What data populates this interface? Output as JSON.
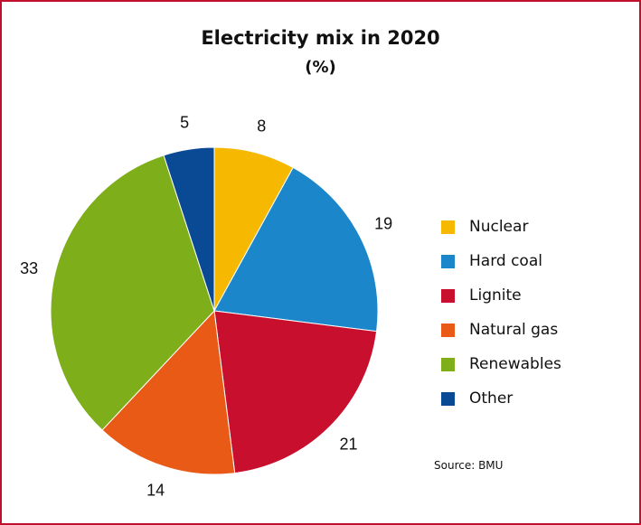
{
  "chart_data": {
    "type": "pie",
    "title": "Electricity mix in 2020",
    "subtitle": "(%)",
    "categories": [
      "Nuclear",
      "Hard coal",
      "Lignite",
      "Natural gas",
      "Renewables",
      "Other"
    ],
    "values": [
      8,
      19,
      21,
      14,
      33,
      5
    ],
    "colors": [
      "#f6b800",
      "#1b86c9",
      "#c8102e",
      "#e85a16",
      "#7fae1b",
      "#0a4a95"
    ],
    "legend_position": "right",
    "source": "Source: BMU"
  }
}
